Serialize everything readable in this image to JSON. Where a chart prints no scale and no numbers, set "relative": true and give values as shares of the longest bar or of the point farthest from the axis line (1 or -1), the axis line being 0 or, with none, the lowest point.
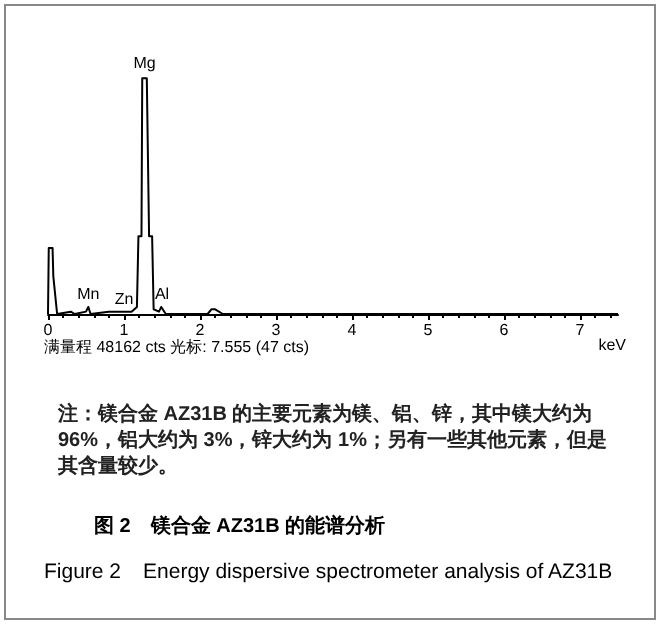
{
  "chart_data": {
    "type": "line",
    "relative": true,
    "title": "图 2　镁合金 AZ31B 的能谱分析",
    "subtitle": "Figure 2　Energy dispersive spectrometer analysis of AZ31B",
    "xlabel": "keV",
    "x": [
      0,
      0.01,
      0.06,
      0.07,
      0.12,
      0.3,
      0.35,
      0.5,
      0.53,
      0.56,
      0.8,
      1.1,
      1.17,
      1.19,
      1.23,
      1.24,
      1.3,
      1.33,
      1.37,
      1.39,
      1.46,
      1.49,
      1.55,
      2.1,
      2.15,
      2.2,
      2.3,
      7.5
    ],
    "series": [
      {
        "color": "#000000",
        "values": [
          0,
          0.28,
          0.28,
          0.16,
          0,
          0.01,
          0,
          0.01,
          0.03,
          0,
          0.01,
          0.01,
          0.03,
          0.33,
          0.33,
          1,
          1,
          0.33,
          0.33,
          0.02,
          0.01,
          0.03,
          0,
          0,
          0.02,
          0.02,
          0,
          0
        ]
      }
    ],
    "xlim": [
      0,
      7.5
    ],
    "xticks": [
      0,
      1,
      2,
      3,
      4,
      5,
      6,
      7
    ],
    "grid": false,
    "marker": "none",
    "line_style": "solid",
    "annotations": [
      {
        "text": "Mg",
        "x": 1.27,
        "y": 1.03
      },
      {
        "text": "Mn",
        "x": 0.53,
        "y": 0.05
      },
      {
        "text": "Zn",
        "x": 1.0,
        "y": 0.03
      },
      {
        "text": "Al",
        "x": 1.5,
        "y": 0.05
      },
      "满量程 48162 cts 光标: 7.555 (47 cts)",
      "注：镁合金 AZ31B 的主要元素为镁、铝、锌，其中镁大约为 96%，铝大约为 3%，锌大约为 1%；另有一些其他元素，但是其含量较少。"
    ]
  }
}
